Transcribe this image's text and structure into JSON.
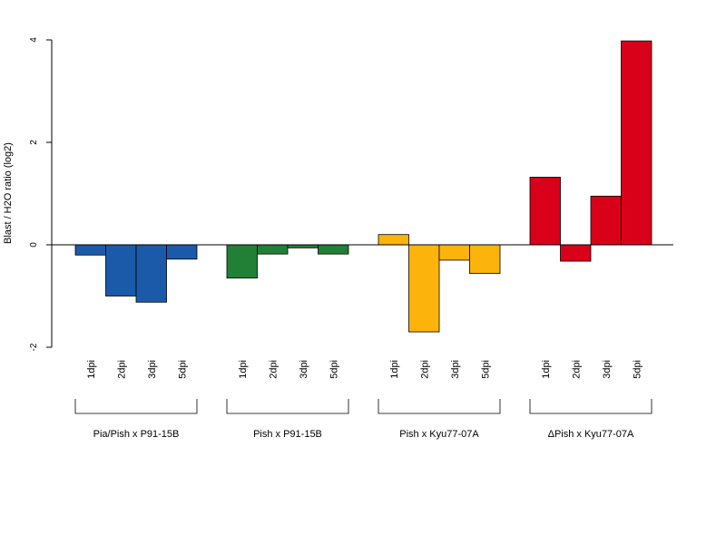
{
  "chart_data": {
    "type": "bar",
    "title": "",
    "xlabel": "",
    "ylabel": "Blast / H2O ratio (log2)",
    "ylim": [
      -2,
      4
    ],
    "yticks": [
      -2,
      0,
      2,
      4
    ],
    "grid": false,
    "legend": "none",
    "categories": [
      "1dpi",
      "2dpi",
      "3dpi",
      "5dpi"
    ],
    "groups": [
      {
        "name": "Pia/Pish x P91-15B",
        "color": "#1a5aa8",
        "values": [
          -0.2,
          -1.0,
          -1.12,
          -0.28
        ]
      },
      {
        "name": "Pish x P91-15B",
        "color": "#217f36",
        "values": [
          -0.65,
          -0.18,
          -0.06,
          -0.18
        ]
      },
      {
        "name": "Pish x Kyu77-07A",
        "color": "#fcb30b",
        "values": [
          0.2,
          -1.7,
          -0.3,
          -0.56
        ]
      },
      {
        "name": "ΔPish x Kyu77-07A",
        "color": "#d9001a",
        "values": [
          1.32,
          -0.32,
          0.95,
          3.98
        ]
      }
    ]
  }
}
